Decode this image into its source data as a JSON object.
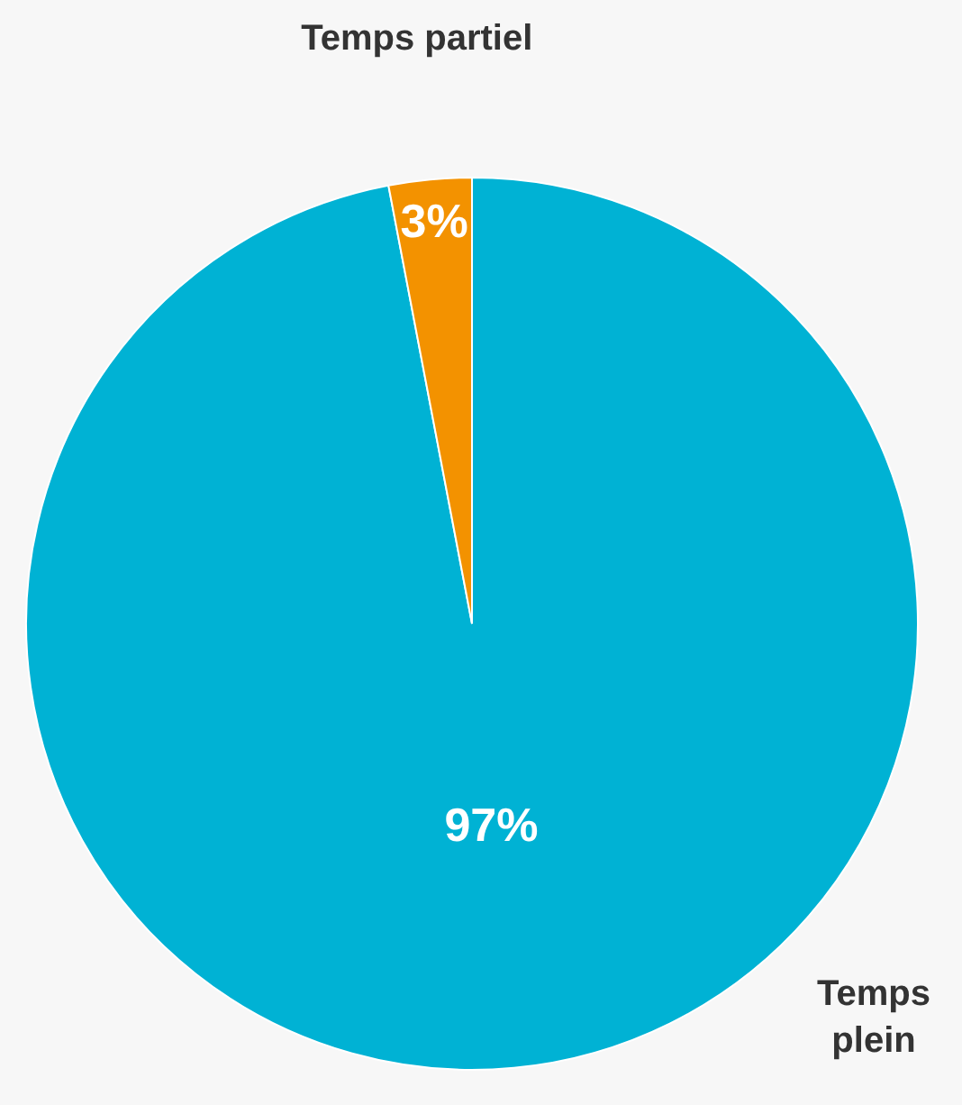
{
  "chart_data": {
    "type": "pie",
    "categories": [
      "Temps plein",
      "Temps partiel"
    ],
    "values": [
      97,
      3
    ],
    "colors": [
      "#00b2d4",
      "#f39200"
    ],
    "value_labels": [
      "97%",
      "3%"
    ],
    "legend": false
  }
}
